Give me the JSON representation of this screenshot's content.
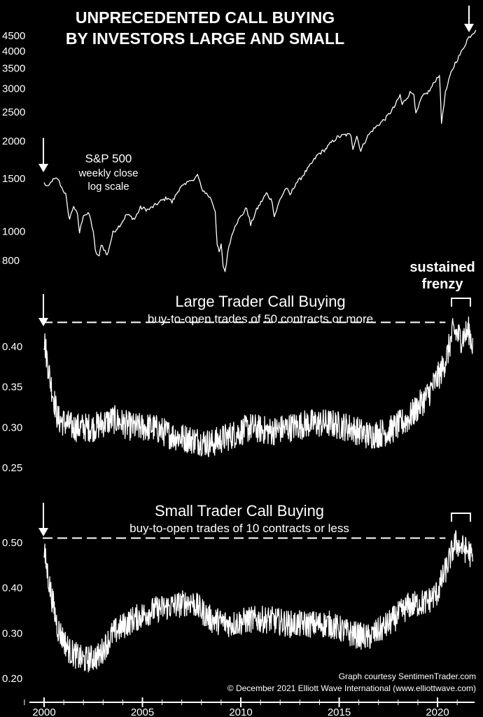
{
  "chart_data": {
    "title_line1": "UNPRECEDENTED CALL BUYING",
    "title_line2": "BY INVESTORS LARGE AND SMALL",
    "x_axis": {
      "min": 2000,
      "max": 2021.6,
      "ticks": [
        "2000",
        "2005",
        "2010",
        "2015",
        "2020"
      ]
    },
    "callout_line1": "sustained",
    "callout_line2": "frenzy",
    "credit_line1": "Graph courtesy SentimenTrader.com",
    "credit_line2": "© December 2021 Elliott Wave International (www.elliottwave.com)",
    "panels": [
      {
        "id": "sp500",
        "type": "line",
        "label": "S&P 500",
        "sublabel1": "weekly close",
        "sublabel2": "log scale",
        "scale": "log",
        "ylim": [
          700,
          4900
        ],
        "y_ticks": [
          "800",
          "1000",
          "1500",
          "2000",
          "2500",
          "3000",
          "3500",
          "4000",
          "4500"
        ],
        "series": [
          {
            "points": [
              [
                2000.0,
                1450
              ],
              [
                2000.2,
                1400
              ],
              [
                2000.4,
                1480
              ],
              [
                2000.7,
                1500
              ],
              [
                2000.9,
                1400
              ],
              [
                2001.1,
                1330
              ],
              [
                2001.2,
                1180
              ],
              [
                2001.3,
                1100
              ],
              [
                2001.5,
                1220
              ],
              [
                2001.7,
                1130
              ],
              [
                2001.8,
                990
              ],
              [
                2002.0,
                1140
              ],
              [
                2002.3,
                1140
              ],
              [
                2002.5,
                1000
              ],
              [
                2002.6,
                860
              ],
              [
                2002.8,
                820
              ],
              [
                2002.9,
                910
              ],
              [
                2003.1,
                860
              ],
              [
                2003.2,
                830
              ],
              [
                2003.5,
                990
              ],
              [
                2003.9,
                1060
              ],
              [
                2004.2,
                1140
              ],
              [
                2004.6,
                1100
              ],
              [
                2004.9,
                1200
              ],
              [
                2005.3,
                1180
              ],
              [
                2005.7,
                1230
              ],
              [
                2006.0,
                1270
              ],
              [
                2006.3,
                1300
              ],
              [
                2006.5,
                1250
              ],
              [
                2006.9,
                1400
              ],
              [
                2007.2,
                1430
              ],
              [
                2007.4,
                1500
              ],
              [
                2007.6,
                1470
              ],
              [
                2007.8,
                1550
              ],
              [
                2008.0,
                1390
              ],
              [
                2008.2,
                1350
              ],
              [
                2008.5,
                1280
              ],
              [
                2008.7,
                1170
              ],
              [
                2008.8,
                900
              ],
              [
                2008.9,
                850
              ],
              [
                2009.0,
                900
              ],
              [
                2009.1,
                770
              ],
              [
                2009.2,
                735
              ],
              [
                2009.4,
                900
              ],
              [
                2009.7,
                1050
              ],
              [
                2010.0,
                1120
              ],
              [
                2010.3,
                1200
              ],
              [
                2010.5,
                1050
              ],
              [
                2010.8,
                1180
              ],
              [
                2011.3,
                1340
              ],
              [
                2011.6,
                1260
              ],
              [
                2011.7,
                1120
              ],
              [
                2012.0,
                1280
              ],
              [
                2012.3,
                1400
              ],
              [
                2012.5,
                1320
              ],
              [
                2012.8,
                1450
              ],
              [
                2013.0,
                1490
              ],
              [
                2013.5,
                1650
              ],
              [
                2013.9,
                1800
              ],
              [
                2014.3,
                1880
              ],
              [
                2014.6,
                1980
              ],
              [
                2014.9,
                2060
              ],
              [
                2015.3,
                2100
              ],
              [
                2015.6,
                2100
              ],
              [
                2015.7,
                1900
              ],
              [
                2015.9,
                2080
              ],
              [
                2016.1,
                1860
              ],
              [
                2016.4,
                2060
              ],
              [
                2016.7,
                2180
              ],
              [
                2017.0,
                2270
              ],
              [
                2017.4,
                2400
              ],
              [
                2017.8,
                2600
              ],
              [
                2018.1,
                2850
              ],
              [
                2018.2,
                2650
              ],
              [
                2018.6,
                2900
              ],
              [
                2018.8,
                2900
              ],
              [
                2018.9,
                2450
              ],
              [
                2019.2,
                2800
              ],
              [
                2019.6,
                2950
              ],
              [
                2019.9,
                3200
              ],
              [
                2020.1,
                3350
              ],
              [
                2020.2,
                2300
              ],
              [
                2020.4,
                2900
              ],
              [
                2020.7,
                3400
              ],
              [
                2020.9,
                3650
              ],
              [
                2021.2,
                3950
              ],
              [
                2021.5,
                4350
              ],
              [
                2021.6,
                4450
              ],
              [
                2021.8,
                4600
              ],
              [
                2021.95,
                4700
              ]
            ]
          }
        ]
      },
      {
        "id": "large",
        "type": "line",
        "label": "Large Trader Call Buying",
        "sublabel": "buy-to-open trades of 50 contracts or more",
        "scale": "linear",
        "ylim": [
          0.22,
          0.47
        ],
        "y_ticks": [
          "0.25",
          "0.30",
          "0.35",
          "0.40"
        ],
        "reference_level": 0.43,
        "series": [
          {
            "anchors": [
              [
                2000.0,
                0.41
              ],
              [
                2000.3,
                0.36
              ],
              [
                2000.7,
                0.31
              ],
              [
                2001.5,
                0.3
              ],
              [
                2002.5,
                0.3
              ],
              [
                2003.5,
                0.31
              ],
              [
                2004.5,
                0.3
              ],
              [
                2005.5,
                0.3
              ],
              [
                2006.5,
                0.29
              ],
              [
                2007.5,
                0.285
              ],
              [
                2008.5,
                0.28
              ],
              [
                2009.5,
                0.29
              ],
              [
                2010.5,
                0.3
              ],
              [
                2011.5,
                0.295
              ],
              [
                2012.5,
                0.3
              ],
              [
                2013.5,
                0.305
              ],
              [
                2014.5,
                0.305
              ],
              [
                2015.5,
                0.3
              ],
              [
                2016.5,
                0.29
              ],
              [
                2017.5,
                0.295
              ],
              [
                2018.5,
                0.31
              ],
              [
                2019.5,
                0.34
              ],
              [
                2020.2,
                0.37
              ],
              [
                2020.5,
                0.39
              ],
              [
                2020.8,
                0.42
              ],
              [
                2021.2,
                0.41
              ],
              [
                2021.6,
                0.42
              ],
              [
                2021.8,
                0.4
              ]
            ],
            "noise": 0.018
          }
        ]
      },
      {
        "id": "small",
        "type": "line",
        "label": "Small Trader Call Buying",
        "sublabel": "buy-to-open trades of 10 contracts or less",
        "scale": "linear",
        "ylim": [
          0.18,
          0.56
        ],
        "y_ticks": [
          "0.20",
          "0.30",
          "0.40",
          "0.50"
        ],
        "reference_level": 0.51,
        "series": [
          {
            "anchors": [
              [
                2000.0,
                0.48
              ],
              [
                2000.3,
                0.4
              ],
              [
                2000.7,
                0.31
              ],
              [
                2001.3,
                0.26
              ],
              [
                2002.0,
                0.24
              ],
              [
                2002.8,
                0.25
              ],
              [
                2003.5,
                0.3
              ],
              [
                2004.5,
                0.33
              ],
              [
                2005.5,
                0.35
              ],
              [
                2006.5,
                0.36
              ],
              [
                2007.5,
                0.37
              ],
              [
                2008.5,
                0.33
              ],
              [
                2009.5,
                0.32
              ],
              [
                2010.5,
                0.33
              ],
              [
                2011.5,
                0.33
              ],
              [
                2012.5,
                0.32
              ],
              [
                2013.5,
                0.32
              ],
              [
                2014.5,
                0.32
              ],
              [
                2015.5,
                0.3
              ],
              [
                2016.5,
                0.29
              ],
              [
                2017.5,
                0.32
              ],
              [
                2018.5,
                0.36
              ],
              [
                2019.5,
                0.37
              ],
              [
                2020.0,
                0.39
              ],
              [
                2020.5,
                0.45
              ],
              [
                2020.9,
                0.5
              ],
              [
                2021.2,
                0.49
              ],
              [
                2021.6,
                0.48
              ],
              [
                2021.8,
                0.46
              ]
            ],
            "noise": 0.03
          }
        ]
      }
    ]
  }
}
